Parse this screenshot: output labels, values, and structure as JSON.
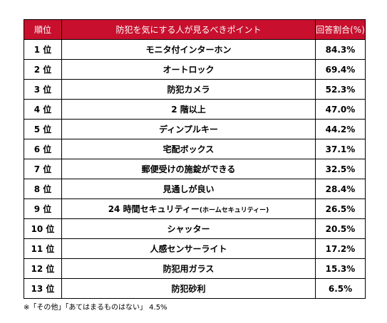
{
  "colors": {
    "header_bg": "#c8102e",
    "header_text": "#ffffff",
    "border": "#000000"
  },
  "table": {
    "headers": {
      "rank": "順位",
      "point": "防犯を気にする人が見るべきポイント",
      "percent": "回答割合(%)"
    },
    "rows": [
      {
        "rank": "1 位",
        "point": "モニタ付インターホン",
        "sub": "",
        "percent": "84.3%"
      },
      {
        "rank": "2 位",
        "point": "オートロック",
        "sub": "",
        "percent": "69.4%"
      },
      {
        "rank": "3 位",
        "point": "防犯カメラ",
        "sub": "",
        "percent": "52.3%"
      },
      {
        "rank": "4 位",
        "point": "2 階以上",
        "sub": "",
        "percent": "47.0%"
      },
      {
        "rank": "5 位",
        "point": "ディンプルキー",
        "sub": "",
        "percent": "44.2%"
      },
      {
        "rank": "6 位",
        "point": "宅配ボックス",
        "sub": "",
        "percent": "37.1%"
      },
      {
        "rank": "7 位",
        "point": "郵便受けの施錠ができる",
        "sub": "",
        "percent": "32.5%"
      },
      {
        "rank": "8 位",
        "point": "見通しが良い",
        "sub": "",
        "percent": "28.4%"
      },
      {
        "rank": "9 位",
        "point": "24 時間セキュリティー",
        "sub": "(ホームセキュリティー)",
        "percent": "26.5%"
      },
      {
        "rank": "10 位",
        "point": "シャッター",
        "sub": "",
        "percent": "20.5%"
      },
      {
        "rank": "11 位",
        "point": "人感センサーライト",
        "sub": "",
        "percent": "17.2%"
      },
      {
        "rank": "12 位",
        "point": "防犯用ガラス",
        "sub": "",
        "percent": "15.3%"
      },
      {
        "rank": "13 位",
        "point": "防犯砂利",
        "sub": "",
        "percent": "6.5%"
      }
    ]
  },
  "note": "※「その他」「あてはまるものはない」 4.5%"
}
